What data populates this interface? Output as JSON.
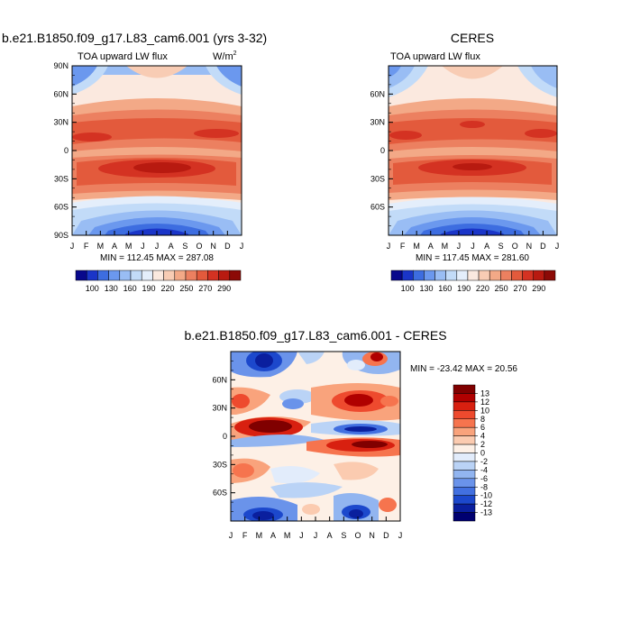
{
  "chart_data": [
    {
      "type": "heatmap",
      "title": "b.e21.B1850.f09_g17.L83_cam6.001 (yrs 3-32)",
      "subtitle_left": "TOA upward LW flux",
      "units_main": "W/m",
      "units_exp": "2",
      "x_ticks": [
        "J",
        "F",
        "M",
        "A",
        "M",
        "J",
        "J",
        "A",
        "S",
        "O",
        "N",
        "D",
        "J"
      ],
      "y_ticks": [
        "90N",
        "60N",
        "30N",
        "0",
        "30S",
        "60S",
        "90S"
      ],
      "stats": "MIN = 112.45 MAX = 287.08",
      "colorbar_labels": [
        "100",
        "130",
        "160",
        "190",
        "220",
        "250",
        "270",
        "290"
      ]
    },
    {
      "type": "heatmap",
      "title": "CERES",
      "subtitle_left": "TOA upward LW flux",
      "x_ticks": [
        "J",
        "F",
        "M",
        "A",
        "M",
        "J",
        "J",
        "A",
        "S",
        "O",
        "N",
        "D",
        "J"
      ],
      "y_ticks": [
        "60N",
        "30N",
        "0",
        "30S",
        "60S"
      ],
      "stats": "MIN = 117.45 MAX = 281.60",
      "colorbar_labels": [
        "100",
        "130",
        "160",
        "190",
        "220",
        "250",
        "270",
        "290"
      ]
    },
    {
      "type": "heatmap",
      "title": "b.e21.B1850.f09_g17.L83_cam6.001 - CERES",
      "x_ticks": [
        "J",
        "F",
        "M",
        "A",
        "M",
        "J",
        "J",
        "A",
        "S",
        "O",
        "N",
        "D",
        "J"
      ],
      "y_ticks": [
        "60N",
        "30N",
        "0",
        "30S",
        "60S"
      ],
      "stats": "MIN = -23.42 MAX =  20.56",
      "colorbar_labels": [
        "13",
        "12",
        "10",
        "8",
        "6",
        "4",
        "2",
        "0",
        "-2",
        "-4",
        "-6",
        "-8",
        "-10",
        "-12",
        "-13"
      ]
    }
  ],
  "colors": {
    "flux_scale": [
      "#08088c",
      "#1a35c8",
      "#3d6de0",
      "#6b98ee",
      "#99bdf4",
      "#c2dbf8",
      "#e4eefb",
      "#fbe9df",
      "#f8ccb4",
      "#f3a987",
      "#ec8060",
      "#e35a3c",
      "#d43222",
      "#b81a10",
      "#8c0a06"
    ],
    "diff_scale": [
      "#800000",
      "#b00000",
      "#d82010",
      "#ee4a2e",
      "#f6744e",
      "#f9a37c",
      "#fbcbb0",
      "#fdf0e6",
      "#e2ecfb",
      "#bad3f6",
      "#92b5f0",
      "#6a93ea",
      "#4270e0",
      "#1c48cc",
      "#0a1f9e",
      "#000070"
    ]
  }
}
